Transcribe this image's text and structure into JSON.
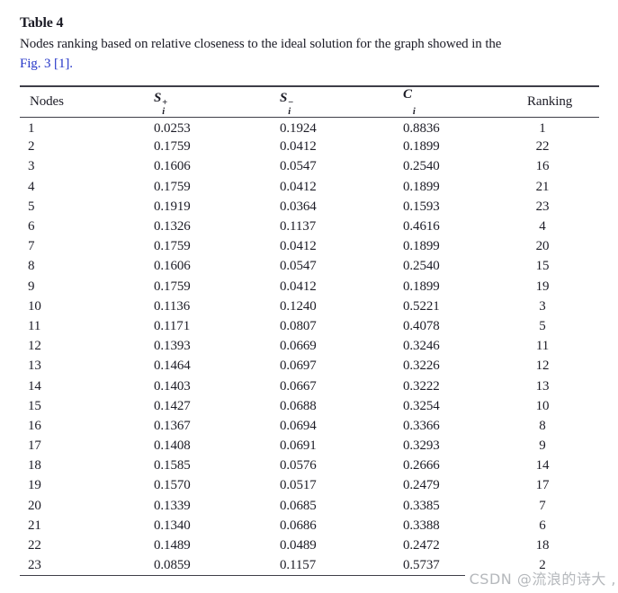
{
  "colors": {
    "text": "#1c1c26",
    "link": "#2536c8",
    "rule": "#3e3e48",
    "watermark": "#b5b8bc"
  },
  "caption": {
    "label": "Table 4",
    "text": "Nodes ranking based on relative closeness to the ideal solution for the graph showed in the",
    "link_text": "Fig. 3 [1]."
  },
  "table": {
    "headers": [
      {
        "base": "Nodes",
        "sub": "",
        "sup": ""
      },
      {
        "base": "S",
        "sub": "i",
        "sup": "+"
      },
      {
        "base": "S",
        "sub": "i",
        "sup": "−"
      },
      {
        "base": "C",
        "sub": "i",
        "sup": ""
      },
      {
        "base": "Ranking",
        "sub": "",
        "sup": ""
      }
    ],
    "column_keys": [
      "node",
      "s-plus",
      "s-minus",
      "c",
      "ranking"
    ],
    "rows": [
      [
        "1",
        "0.0253",
        "0.1924",
        "0.8836",
        "1"
      ],
      [
        "2",
        "0.1759",
        "0.0412",
        "0.1899",
        "22"
      ],
      [
        "3",
        "0.1606",
        "0.0547",
        "0.2540",
        "16"
      ],
      [
        "4",
        "0.1759",
        "0.0412",
        "0.1899",
        "21"
      ],
      [
        "5",
        "0.1919",
        "0.0364",
        "0.1593",
        "23"
      ],
      [
        "6",
        "0.1326",
        "0.1137",
        "0.4616",
        "4"
      ],
      [
        "7",
        "0.1759",
        "0.0412",
        "0.1899",
        "20"
      ],
      [
        "8",
        "0.1606",
        "0.0547",
        "0.2540",
        "15"
      ],
      [
        "9",
        "0.1759",
        "0.0412",
        "0.1899",
        "19"
      ],
      [
        "10",
        "0.1136",
        "0.1240",
        "0.5221",
        "3"
      ],
      [
        "11",
        "0.1171",
        "0.0807",
        "0.4078",
        "5"
      ],
      [
        "12",
        "0.1393",
        "0.0669",
        "0.3246",
        "11"
      ],
      [
        "13",
        "0.1464",
        "0.0697",
        "0.3226",
        "12"
      ],
      [
        "14",
        "0.1403",
        "0.0667",
        "0.3222",
        "13"
      ],
      [
        "15",
        "0.1427",
        "0.0688",
        "0.3254",
        "10"
      ],
      [
        "16",
        "0.1367",
        "0.0694",
        "0.3366",
        "8"
      ],
      [
        "17",
        "0.1408",
        "0.0691",
        "0.3293",
        "9"
      ],
      [
        "18",
        "0.1585",
        "0.0576",
        "0.2666",
        "14"
      ],
      [
        "19",
        "0.1570",
        "0.0517",
        "0.2479",
        "17"
      ],
      [
        "20",
        "0.1339",
        "0.0685",
        "0.3385",
        "7"
      ],
      [
        "21",
        "0.1340",
        "0.0686",
        "0.3388",
        "6"
      ],
      [
        "22",
        "0.1489",
        "0.0489",
        "0.2472",
        "18"
      ],
      [
        "23",
        "0.0859",
        "0.1157",
        "0.5737",
        "2"
      ]
    ]
  },
  "watermark": {
    "text": "CSDN @流浪的诗大 ,"
  }
}
